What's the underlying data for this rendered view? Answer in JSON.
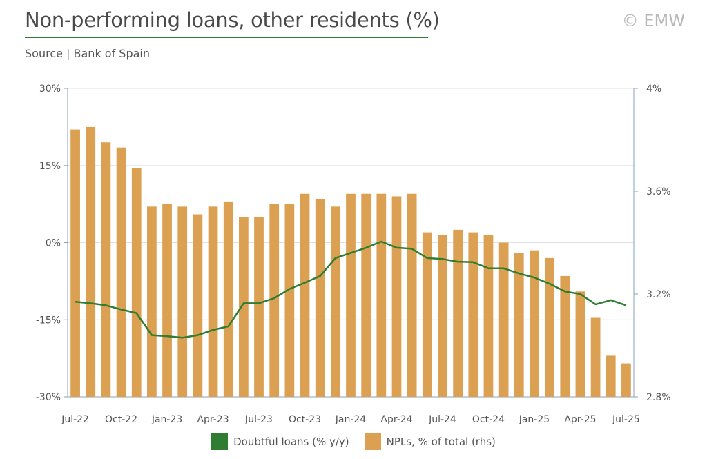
{
  "header": {
    "title": "Non-performing loans, other residents (%)",
    "copyright": "© EMW",
    "source": "Source | Bank of Spain"
  },
  "colors": {
    "bar": "#dba051",
    "line": "#2e7d32",
    "title_rule": "#2e7d32",
    "grid": "#dde3ec",
    "axis": "#8aa0bf"
  },
  "chart_data": {
    "type": "bar+line",
    "categories": [
      "Jul-22",
      "Aug-22",
      "Sep-22",
      "Oct-22",
      "Nov-22",
      "Dec-22",
      "Jan-23",
      "Feb-23",
      "Mar-23",
      "Apr-23",
      "May-23",
      "Jun-23",
      "Jul-23",
      "Aug-23",
      "Sep-23",
      "Oct-23",
      "Nov-23",
      "Dec-23",
      "Jan-24",
      "Feb-24",
      "Mar-24",
      "Apr-24",
      "May-24",
      "Jun-24",
      "Jul-24",
      "Aug-24",
      "Sep-24",
      "Oct-24",
      "Nov-24",
      "Dec-24",
      "Jan-25",
      "Feb-25",
      "Mar-25",
      "Apr-25",
      "May-25",
      "Jun-25",
      "Jul-25"
    ],
    "x_tick_labels": [
      "Jul-22",
      "Oct-22",
      "Jan-23",
      "Apr-23",
      "Jul-23",
      "Oct-23",
      "Jan-24",
      "Apr-24",
      "Jul-24",
      "Oct-24",
      "Jan-25",
      "Apr-25",
      "Jul-25"
    ],
    "series": [
      {
        "name": "NPLs, % of total (rhs)",
        "axis": "right",
        "type": "bar",
        "values": [
          3.84,
          3.85,
          3.79,
          3.77,
          3.69,
          3.54,
          3.55,
          3.54,
          3.51,
          3.54,
          3.56,
          3.5,
          3.5,
          3.55,
          3.55,
          3.59,
          3.57,
          3.54,
          3.59,
          3.59,
          3.59,
          3.58,
          3.59,
          3.44,
          3.43,
          3.45,
          3.44,
          3.43,
          3.4,
          3.36,
          3.37,
          3.34,
          3.27,
          3.21,
          3.11,
          2.96,
          2.93
        ]
      },
      {
        "name": "Doubtful loans (% y/y)",
        "axis": "left",
        "type": "line",
        "values": [
          -11.5,
          -11.8,
          -12.2,
          -13.0,
          -13.7,
          -18.0,
          -18.2,
          -18.5,
          -18.0,
          -17.0,
          -16.3,
          -11.8,
          -11.8,
          -10.8,
          -9.0,
          -7.8,
          -6.5,
          -3.0,
          -2.0,
          -1.0,
          0.2,
          -1.0,
          -1.2,
          -3.0,
          -3.2,
          -3.7,
          -3.8,
          -5.0,
          -5.0,
          -6.0,
          -6.8,
          -8.0,
          -9.5,
          -10.0,
          -12.0,
          -11.2,
          -12.2
        ]
      }
    ],
    "left_axis": {
      "min": -30,
      "max": 30,
      "ticks": [
        "30%",
        "15%",
        "0%",
        "-15%",
        "-30%"
      ]
    },
    "right_axis": {
      "min": 2.8,
      "max": 4.0,
      "ticks": [
        "4%",
        "3.6%",
        "3.2%",
        "2.8%"
      ]
    },
    "grid": true,
    "legend_position": "bottom-center"
  },
  "legend": {
    "line_label": "Doubtful loans (% y/y)",
    "bar_label": "NPLs, % of total (rhs)"
  }
}
